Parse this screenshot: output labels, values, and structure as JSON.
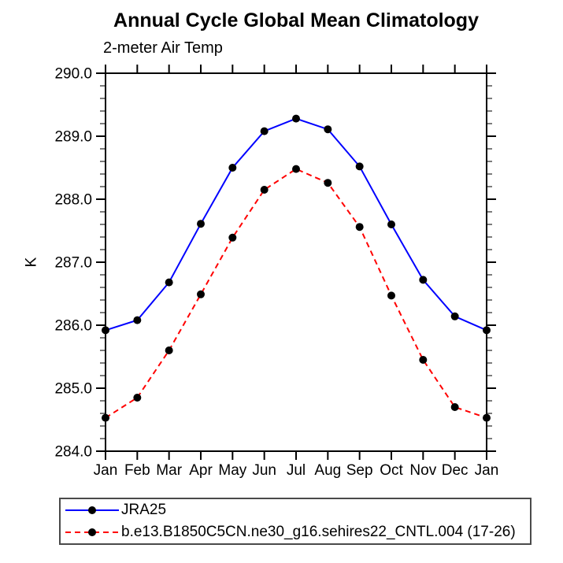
{
  "chart_data": {
    "type": "line",
    "title": "Annual Cycle Global Mean Climatology",
    "subtitle": "2-meter Air Temp",
    "xlabel": "",
    "ylabel": "K",
    "categories": [
      "Jan",
      "Feb",
      "Mar",
      "Apr",
      "May",
      "Jun",
      "Jul",
      "Aug",
      "Sep",
      "Oct",
      "Nov",
      "Dec",
      "Jan"
    ],
    "ylim": [
      284.0,
      290.0
    ],
    "ytick_interval": 1.0,
    "ytick_minor_interval": 0.2,
    "ytick_labels": [
      "290.0",
      "289.0",
      "288.0",
      "287.0",
      "286.0",
      "285.0",
      "284.0"
    ],
    "grid": false,
    "legend_position": "bottom-left",
    "axis_color": "#000000",
    "series": [
      {
        "name": "JRA25",
        "color": "#0000ff",
        "line_style": "solid",
        "marker": "circle",
        "marker_color": "#000000",
        "values": [
          285.92,
          286.08,
          286.68,
          287.61,
          288.5,
          289.08,
          289.28,
          289.11,
          288.52,
          287.6,
          286.72,
          286.14,
          285.92
        ]
      },
      {
        "name": "b.e13.B1850C5CN.ne30_g16.sehires22_CNTL.004 (17-26)",
        "color": "#ff0000",
        "line_style": "dashed",
        "marker": "circle",
        "marker_color": "#000000",
        "values": [
          284.53,
          284.85,
          285.6,
          286.49,
          287.39,
          288.15,
          288.48,
          288.26,
          287.56,
          286.47,
          285.45,
          284.7,
          284.53
        ]
      }
    ]
  }
}
